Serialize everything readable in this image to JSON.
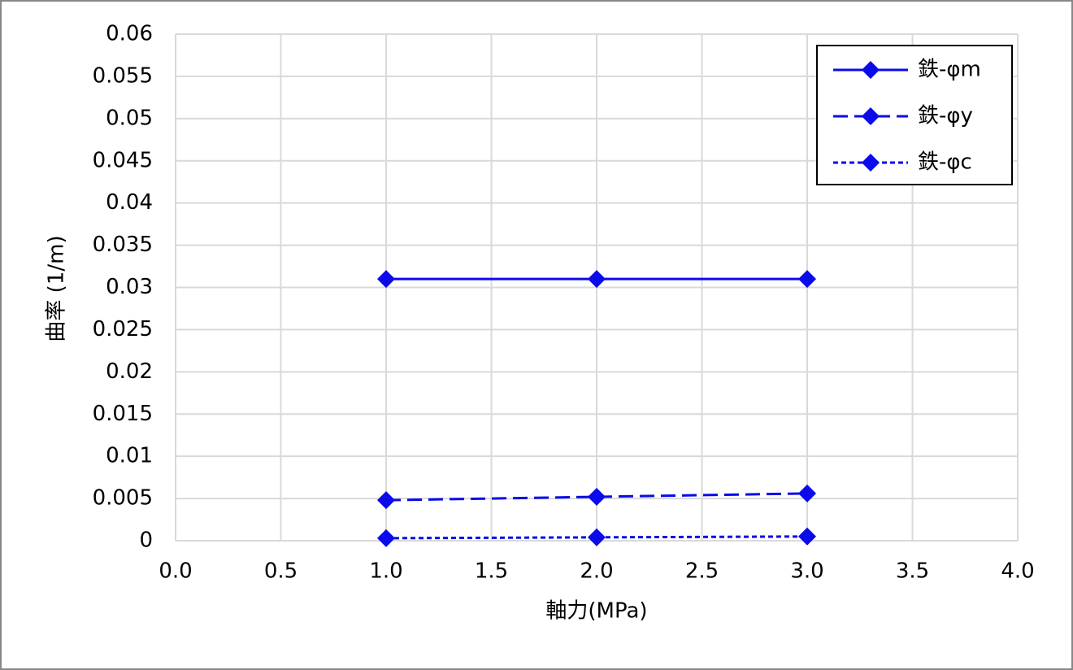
{
  "chart_data": {
    "type": "line",
    "xlabel": "軸力(MPa)",
    "ylabel": "曲率 (1/m)",
    "x": [
      1,
      2,
      3
    ],
    "series": [
      {
        "name": "鉄-φm",
        "color": "#0a0aeb",
        "dash": "solid",
        "values": [
          0.031,
          0.031,
          0.031
        ]
      },
      {
        "name": "鉄-φy",
        "color": "#0a0aeb",
        "dash": "dashed",
        "values": [
          0.0048,
          0.0052,
          0.0056
        ]
      },
      {
        "name": "鉄-φc",
        "color": "#0a0aeb",
        "dash": "dotted",
        "values": [
          0.0003,
          0.0004,
          0.0005
        ]
      }
    ],
    "xlim": [
      0,
      4
    ],
    "xticks": [
      {
        "value": 0,
        "label": "0.0"
      },
      0.5,
      {
        "value": 1,
        "label": "1.0"
      },
      1.5,
      {
        "value": 2,
        "label": "2.0"
      },
      2.5,
      {
        "value": 3,
        "label": "3.0"
      },
      3.5,
      {
        "value": 4,
        "label": "4.0"
      }
    ],
    "ylim": [
      0,
      0.06
    ],
    "yticks": [
      0,
      0.005,
      0.01,
      0.015,
      0.02,
      0.025,
      0.03,
      0.035,
      0.04,
      0.045,
      0.05,
      0.055,
      0.06
    ],
    "grid": true,
    "legend": "upper right"
  }
}
